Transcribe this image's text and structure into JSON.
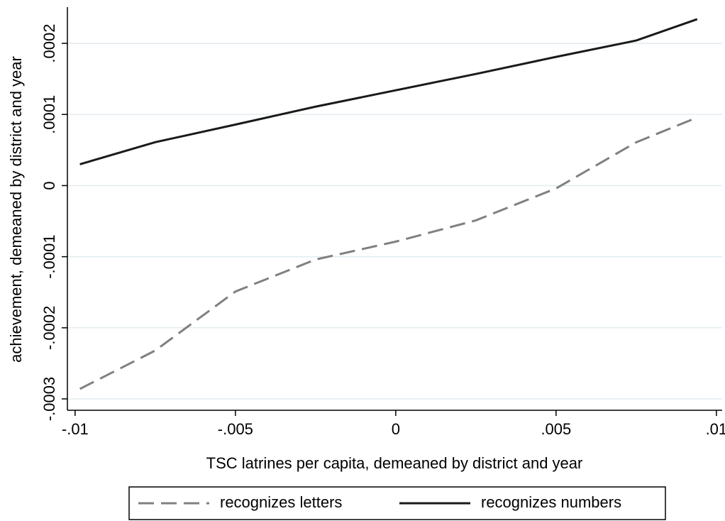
{
  "chart_data": {
    "type": "line",
    "x_label": "TSC latrines per capita, demeaned by district and year",
    "y_label": "achievement, demeaned by district and year",
    "x": [
      -0.00985,
      -0.0075,
      -0.005,
      -0.0025,
      0,
      0.0025,
      0.005,
      0.0075,
      0.0094
    ],
    "series": [
      {
        "name": "recognizes letters",
        "color": "#808080",
        "style": "dashed",
        "values": [
          -0.000286,
          -0.000232,
          -0.000149,
          -0.000104,
          -7.88e-05,
          -4.89e-05,
          -4e-06,
          6.09e-05,
          9.58e-05
        ]
      },
      {
        "name": "recognizes numbers",
        "color": "#1a1a1a",
        "style": "solid",
        "values": [
          3e-05,
          6.1e-05,
          8.58e-05,
          0.000111,
          0.000134,
          0.000157,
          0.000181,
          0.000204,
          0.000234
        ]
      }
    ],
    "xlim": [
      -0.01024,
      0.01018
    ],
    "ylim": [
      -0.000316,
      0.000251
    ],
    "xticks": [
      {
        "value": -0.01,
        "label": "-.01"
      },
      {
        "value": -0.005,
        "label": "-.005"
      },
      0,
      {
        "value": 0.005,
        "label": ".005"
      },
      {
        "value": 0.01,
        "label": ".01"
      }
    ],
    "yticks": [
      {
        "value": -0.0003,
        "label": "-.0003"
      },
      {
        "value": -0.0002,
        "label": "-.0002"
      },
      {
        "value": -0.0001,
        "label": "-.0001"
      },
      0,
      {
        "value": 0.0001,
        "label": ".0001"
      },
      {
        "value": 0.0002,
        "label": ".0002"
      }
    ],
    "grid": true,
    "legend": "bottom"
  }
}
